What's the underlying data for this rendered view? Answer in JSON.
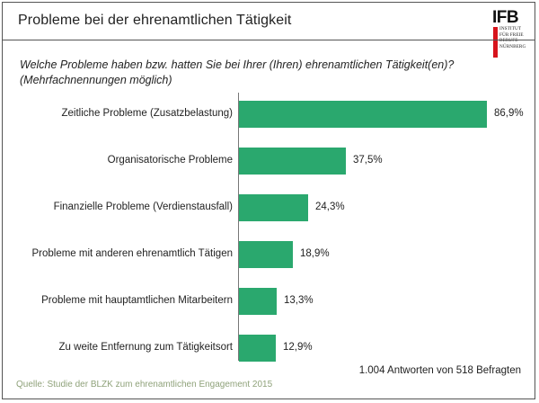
{
  "header": {
    "title": "Probleme bei der ehrenamtlichen Tätigkeit",
    "logo_main": "IFB",
    "logo_lines": [
      "INSTITUT",
      "FÜR FREIE",
      "BERUFE",
      "NÜRNBERG"
    ]
  },
  "question": "Welche Probleme haben bzw. hatten Sie bei Ihrer (Ihren) ehrenamtlichen Tätigkeit(en)? (Mehrfachnennungen möglich)",
  "footer": {
    "note": "1.004 Antworten von 518 Befragten",
    "source": "Quelle: Studie der BLZK zum ehrenamtlichen Engagement 2015"
  },
  "colors": {
    "bar": "#2aa86e",
    "logo_accent": "#d7141c"
  },
  "chart_data": {
    "type": "bar",
    "orientation": "horizontal",
    "title": "Probleme bei der ehrenamtlichen Tätigkeit",
    "categories": [
      "Zeitliche Probleme (Zusatzbelastung)",
      "Organisatorische Probleme",
      "Finanzielle Probleme (Verdienstausfall)",
      "Probleme mit anderen ehrenamtlich Tätigen",
      "Probleme mit hauptamtlichen Mitarbeitern",
      "Zu weite Entfernung zum Tätigkeitsort"
    ],
    "values": [
      86.9,
      37.5,
      24.3,
      18.9,
      13.3,
      12.9
    ],
    "value_labels": [
      "86,9%",
      "37,5%",
      "24,3%",
      "18,9%",
      "13,3%",
      "12,9%"
    ],
    "unit": "%",
    "xlim": [
      0,
      86.9
    ],
    "grid": false,
    "legend": "none"
  }
}
